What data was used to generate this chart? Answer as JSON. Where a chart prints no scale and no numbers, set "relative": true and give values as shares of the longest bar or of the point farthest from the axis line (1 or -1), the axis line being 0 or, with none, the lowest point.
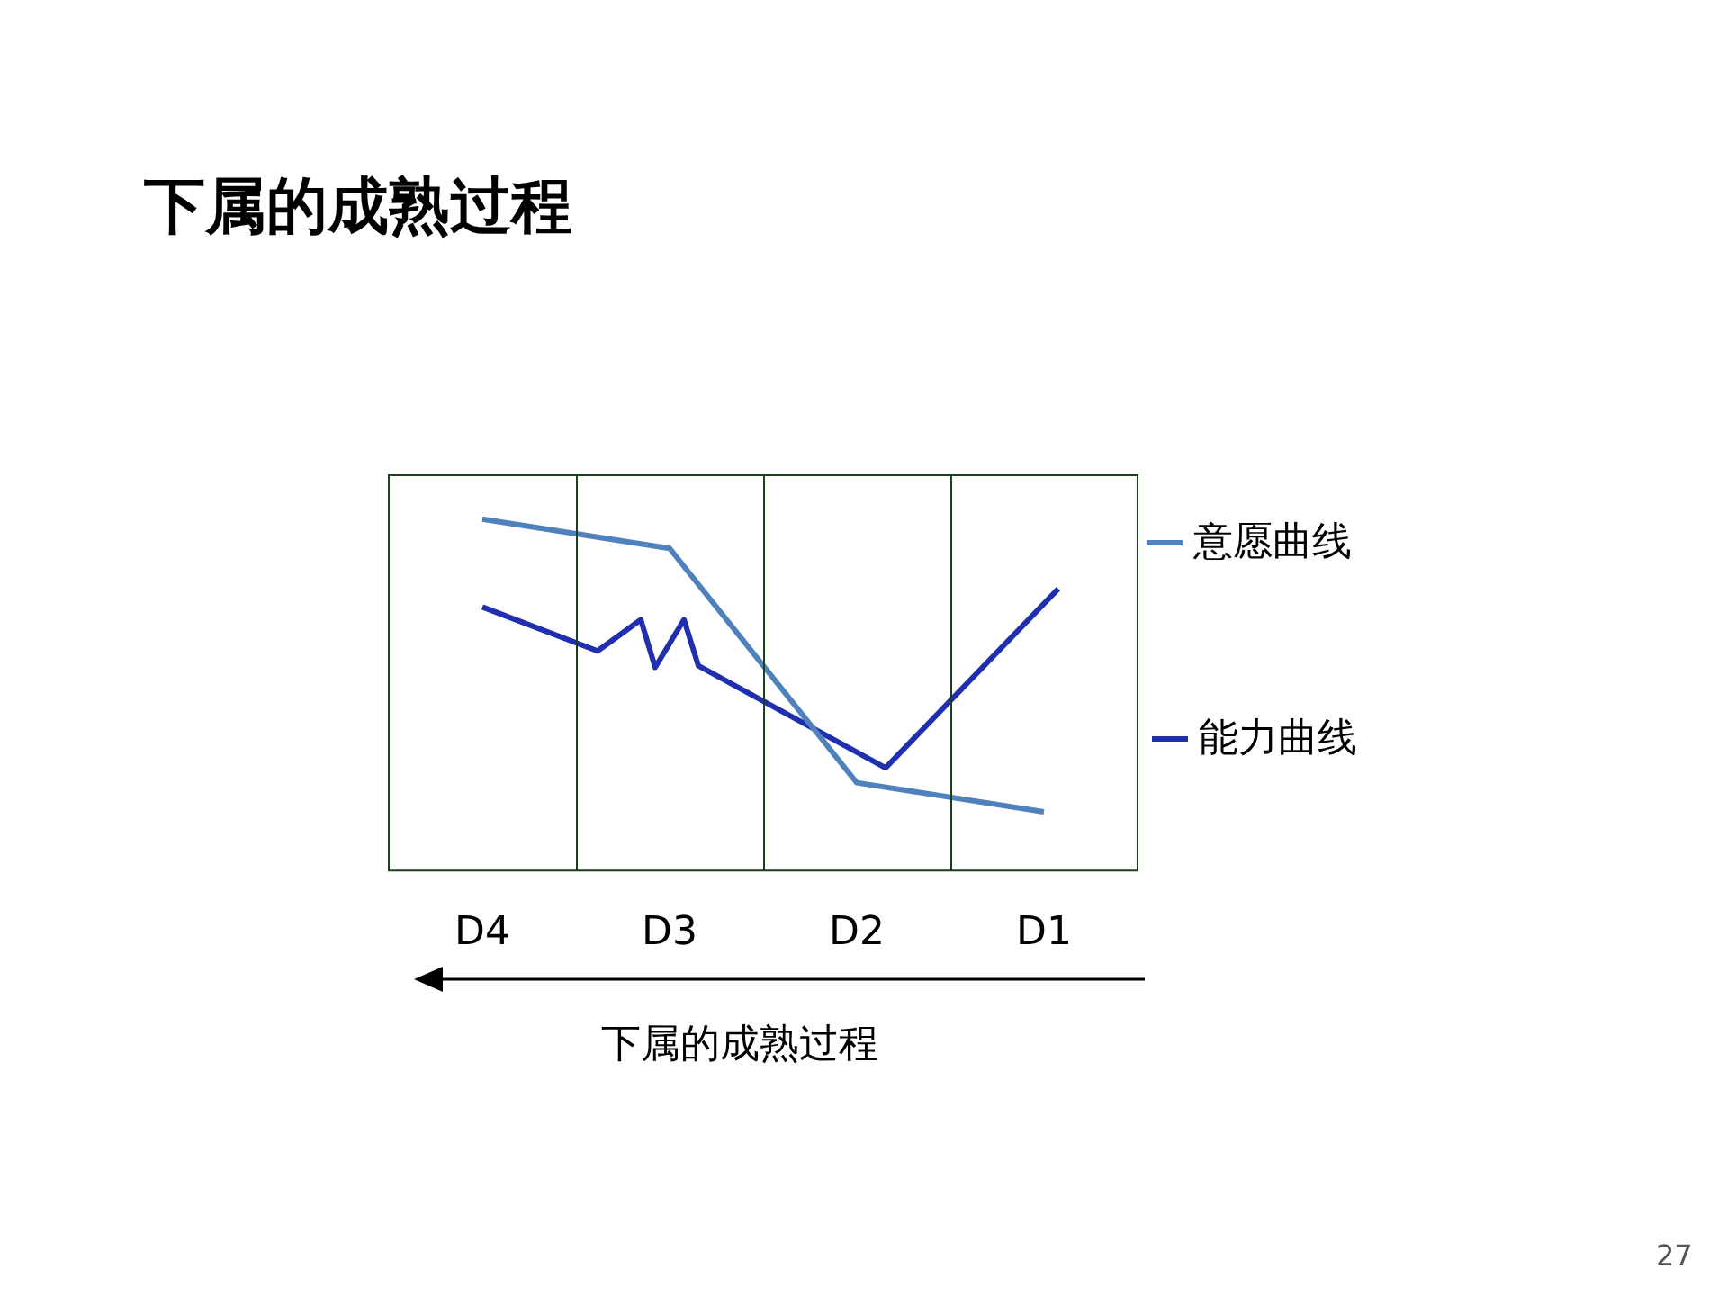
{
  "chart_data": {
    "type": "line",
    "title": "下属的成熟过程",
    "relative": true,
    "categories": [
      null,
      null,
      null,
      null,
      null,
      null,
      "D4",
      null,
      null,
      null,
      null,
      null,
      null,
      null,
      null,
      null,
      null,
      null,
      null,
      "D3",
      null,
      null,
      null,
      null,
      null,
      null,
      null,
      null,
      null,
      null,
      null,
      null,
      "D2",
      null,
      null,
      null,
      null,
      null,
      null,
      null,
      null,
      null,
      null,
      null,
      null,
      "D1",
      null,
      null,
      null,
      null,
      null,
      null
    ],
    "series": [
      {
        "name": "意愿曲线",
        "color": "#4f81bd",
        "values": [
          null,
          null,
          null,
          null,
          null,
          null,
          1,
          null,
          null,
          null,
          null,
          null,
          null,
          null,
          null,
          null,
          null,
          null,
          null,
          0.917,
          null,
          null,
          null,
          null,
          null,
          null,
          null,
          null,
          null,
          null,
          null,
          null,
          0.25,
          null,
          null,
          null,
          null,
          null,
          null,
          null,
          null,
          null,
          null,
          null,
          null,
          0.167,
          null,
          null,
          null,
          null,
          null,
          null
        ]
      },
      {
        "name": "能力曲线",
        "color": "#1f2fb0",
        "values": [
          null,
          null,
          null,
          null,
          null,
          null,
          0.75,
          null,
          null,
          null,
          null,
          null,
          null,
          null,
          0.625,
          null,
          null,
          0.714,
          0.578,
          null,
          0.714,
          0.583,
          null,
          null,
          null,
          null,
          null,
          null,
          null,
          null,
          null,
          null,
          null,
          null,
          0.292,
          null,
          null,
          null,
          null,
          null,
          null,
          null,
          null,
          null,
          null,
          null,
          0.802,
          null,
          null,
          null,
          null,
          null
        ]
      }
    ],
    "legend": "right",
    "marker": "none",
    "line_style": "solid",
    "annotations": [
      "下属的成熟过程",
      "27"
    ]
  }
}
